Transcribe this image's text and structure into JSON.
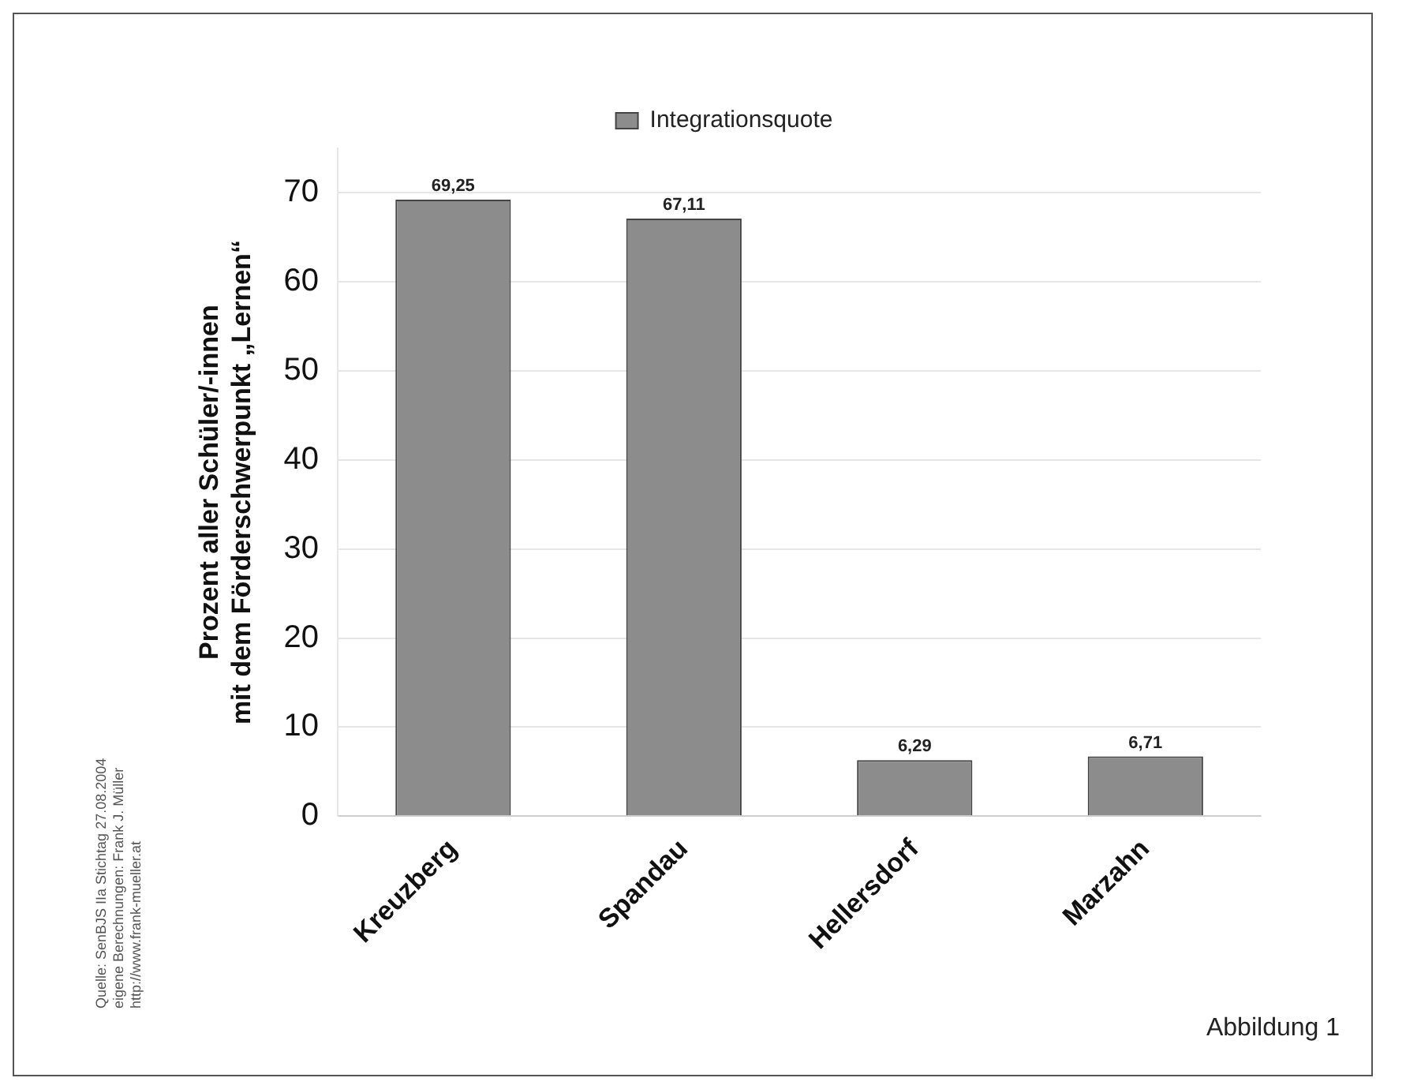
{
  "chart_data": {
    "type": "bar",
    "ylabel": "Prozent aller Schüler/-innen\nmit dem Förderschwerpunkt „Lernen“",
    "categories": [
      "Kreuzberg",
      "Spandau",
      "Hellersdorf",
      "Marzahn"
    ],
    "series": [
      {
        "name": "Integrationsquote",
        "color": "#8c8c8c",
        "values": [
          69.25,
          67.11,
          6.29,
          6.71
        ]
      }
    ],
    "value_labels": [
      "69,25",
      "67,11",
      "6,29",
      "6,71"
    ],
    "ylim": [
      0,
      75
    ],
    "yticks": [
      0,
      10,
      20,
      30,
      40,
      50,
      60,
      70
    ],
    "grid": "y",
    "legend": "top",
    "annotations": [
      "Quelle: SenBJS IIa Stichtag 27.08.2004\neigene Berechnungen: Frank J. Müller\nhttp://www.frank-mueller.at",
      "Abbildung 1"
    ]
  }
}
